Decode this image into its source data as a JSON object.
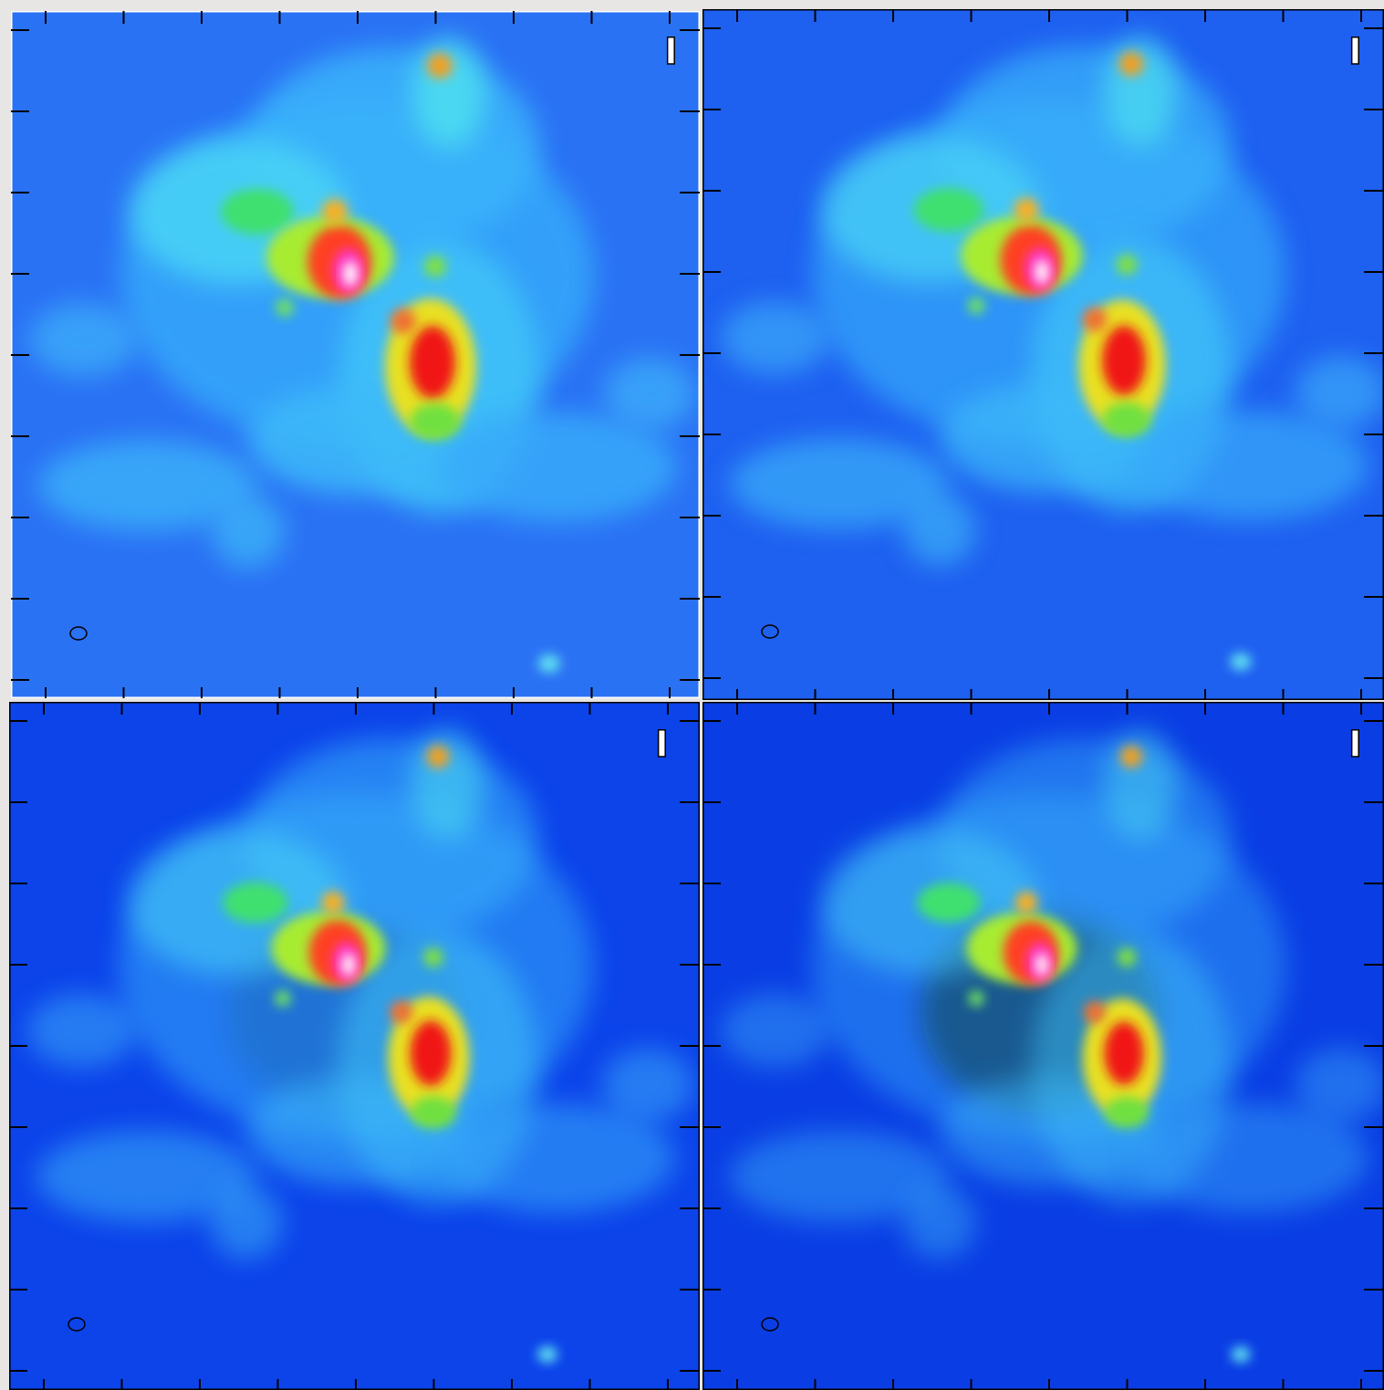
{
  "panels": [
    {
      "label": "I"
    },
    {
      "label": "I"
    },
    {
      "label": "I"
    },
    {
      "label": "I"
    }
  ]
}
